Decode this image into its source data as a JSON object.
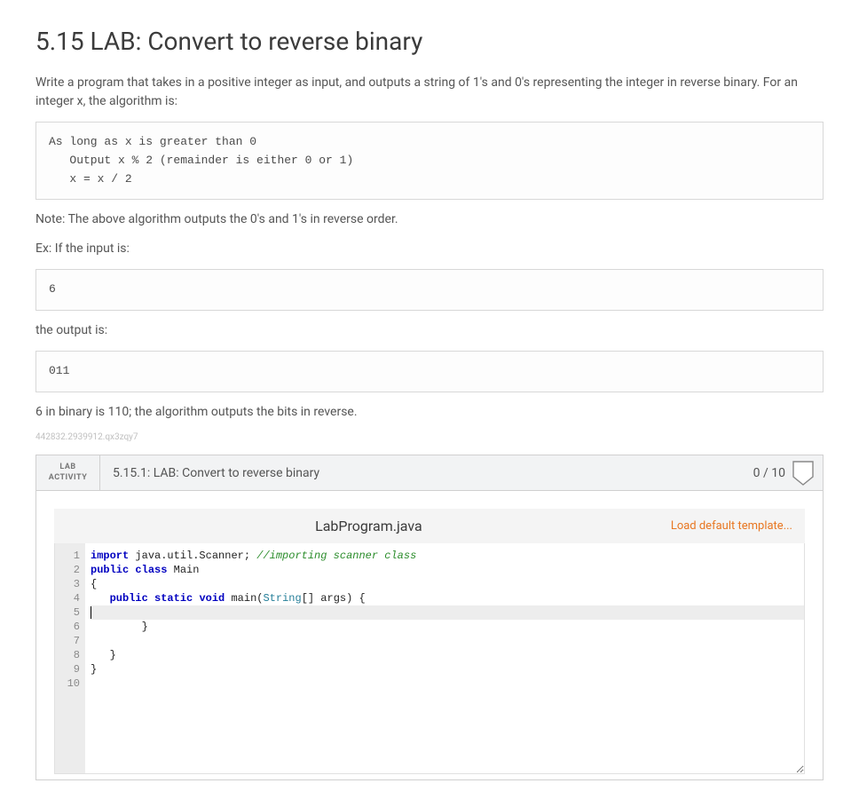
{
  "title": "5.15 LAB: Convert to reverse binary",
  "intro": "Write a program that takes in a positive integer as input, and outputs a string of 1's and 0's representing the integer in reverse binary. For an integer x, the algorithm is:",
  "algorithm_code": "As long as x is greater than 0\n   Output x % 2 (remainder is either 0 or 1)\n   x = x / 2",
  "note": "Note: The above algorithm outputs the 0's and 1's in reverse order.",
  "ex_label": "Ex: If the input is:",
  "ex_input": "6",
  "output_label": "the output is:",
  "ex_output": "011",
  "explanation": "6 in binary is 110; the algorithm outputs the bits in reverse.",
  "watermark": "442832.2939912.qx3zqy7",
  "activity": {
    "badge_line1": "LAB",
    "badge_line2": "ACTIVITY",
    "title": "5.15.1: LAB: Convert to reverse binary",
    "score": "0 / 10",
    "file_name": "LabProgram.java",
    "load_template": "Load default template..."
  },
  "editor": {
    "line_count": 10,
    "current_line": 5,
    "colors": {
      "keyword": "#0000c0",
      "type": "#267f99",
      "comment": "#2a8c2a",
      "plain": "#222222",
      "gutter_bg": "#ececec",
      "gutter_fg": "#8a8a8a",
      "current_line_bg": "#ededed",
      "editor_bg": "#ffffff"
    },
    "lines": [
      {
        "n": 1,
        "tokens": [
          {
            "t": "kw",
            "v": "import"
          },
          {
            "t": "pln",
            "v": " java.util.Scanner; "
          },
          {
            "t": "com",
            "v": "//importing scanner class"
          }
        ]
      },
      {
        "n": 2,
        "tokens": [
          {
            "t": "kw",
            "v": "public"
          },
          {
            "t": "pln",
            "v": " "
          },
          {
            "t": "kw",
            "v": "class"
          },
          {
            "t": "pln",
            "v": " Main"
          }
        ]
      },
      {
        "n": 3,
        "tokens": [
          {
            "t": "pln",
            "v": "{"
          }
        ]
      },
      {
        "n": 4,
        "tokens": [
          {
            "t": "pln",
            "v": "   "
          },
          {
            "t": "kw",
            "v": "public"
          },
          {
            "t": "pln",
            "v": " "
          },
          {
            "t": "kw",
            "v": "static"
          },
          {
            "t": "pln",
            "v": " "
          },
          {
            "t": "kw",
            "v": "void"
          },
          {
            "t": "pln",
            "v": " main("
          },
          {
            "t": "type",
            "v": "String"
          },
          {
            "t": "pln",
            "v": "[] args) {"
          }
        ]
      },
      {
        "n": 5,
        "tokens": [],
        "cursor": true
      },
      {
        "n": 6,
        "tokens": [
          {
            "t": "pln",
            "v": "        }"
          }
        ]
      },
      {
        "n": 7,
        "tokens": []
      },
      {
        "n": 8,
        "tokens": [
          {
            "t": "pln",
            "v": "   }"
          }
        ]
      },
      {
        "n": 9,
        "tokens": [
          {
            "t": "pln",
            "v": "}"
          }
        ]
      },
      {
        "n": 10,
        "tokens": []
      }
    ]
  }
}
